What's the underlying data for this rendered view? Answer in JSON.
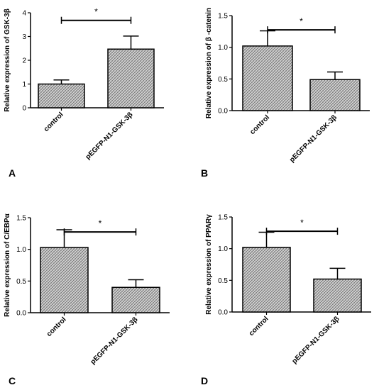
{
  "chart_data": [
    {
      "type": "bar",
      "panel_label": "A",
      "categories": [
        "control",
        "pEGFP-N1-GSK-3β"
      ],
      "values": [
        1.0,
        2.47
      ],
      "errors": [
        0.17,
        0.55
      ],
      "ylabel": "Relative expression of GSK-3β",
      "ylim": [
        0,
        4
      ],
      "yticks": [
        0,
        1,
        2,
        3,
        4
      ],
      "yticklabels": [
        "0",
        "1",
        "2",
        "3",
        "4"
      ],
      "significance": "*",
      "grid": false,
      "bar_fill": "crosshatch-gray"
    },
    {
      "type": "bar",
      "panel_label": "B",
      "categories": [
        "control",
        "pEGFP-N1-GSK-3β"
      ],
      "values": [
        1.02,
        0.49
      ],
      "errors": [
        0.24,
        0.12
      ],
      "ylabel": "Relative expression of β -catenin",
      "ylim": [
        0,
        1.5
      ],
      "yticks": [
        0,
        0.5,
        1.0,
        1.5
      ],
      "yticklabels": [
        "0.0",
        "0.5",
        "1.0",
        "1.5"
      ],
      "significance": "*",
      "grid": false,
      "bar_fill": "crosshatch-gray"
    },
    {
      "type": "bar",
      "panel_label": "C",
      "categories": [
        "control",
        "pEGFP-N1-GSK-3β"
      ],
      "values": [
        1.03,
        0.4
      ],
      "errors": [
        0.28,
        0.12
      ],
      "ylabel": "Relative expression of C/EBPα",
      "ylim": [
        0,
        1.5
      ],
      "yticks": [
        0,
        0.5,
        1.0,
        1.5
      ],
      "yticklabels": [
        "0.0",
        "0.5",
        "1.0",
        "1.5"
      ],
      "significance": "*",
      "grid": false,
      "bar_fill": "crosshatch-gray"
    },
    {
      "type": "bar",
      "panel_label": "D",
      "categories": [
        "control",
        "pEGFP-N1-GSK-3β"
      ],
      "values": [
        1.02,
        0.52
      ],
      "errors": [
        0.24,
        0.17
      ],
      "ylabel": "Relative expression of PPARγ",
      "ylim": [
        0,
        1.5
      ],
      "yticks": [
        0,
        0.5,
        1.0,
        1.5
      ],
      "yticklabels": [
        "0.0",
        "0.5",
        "1.0",
        "1.5"
      ],
      "significance": "*",
      "grid": false,
      "bar_fill": "crosshatch-gray"
    }
  ]
}
